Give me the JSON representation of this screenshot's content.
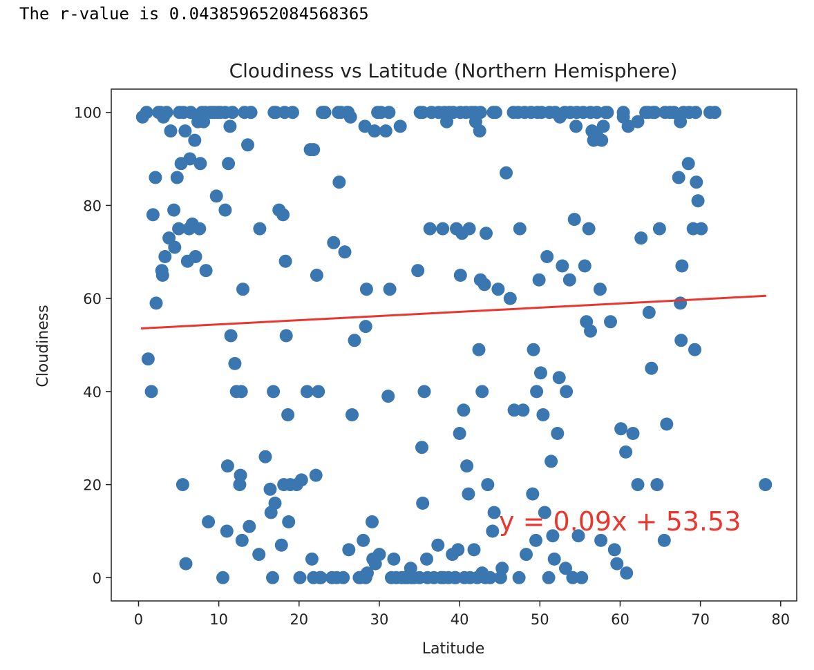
{
  "output_text": "The r-value is 0.043859652084568365",
  "chart_data": {
    "type": "scatter",
    "title": "Cloudiness vs Latitude (Northern Hemisphere)",
    "xlabel": "Latitude",
    "ylabel": "Cloudiness",
    "xlim": [
      -3.4,
      82
    ],
    "ylim": [
      -5,
      105
    ],
    "xticks": [
      0,
      10,
      20,
      30,
      40,
      50,
      60,
      70,
      80
    ],
    "yticks": [
      0,
      20,
      40,
      60,
      80,
      100
    ],
    "grid": false,
    "point_color": "#3a76af",
    "line_color": "#e8372f",
    "regression": {
      "slope": 0.09,
      "intercept": 53.53,
      "x_range": [
        0.3,
        78.2
      ],
      "equation": "y = 0.09x + 53.53"
    },
    "points": [
      [
        0.5,
        99
      ],
      [
        1,
        100
      ],
      [
        1.2,
        47
      ],
      [
        1.6,
        40
      ],
      [
        1.8,
        78
      ],
      [
        2.1,
        86
      ],
      [
        2.2,
        59
      ],
      [
        2.7,
        100
      ],
      [
        2.9,
        66
      ],
      [
        3,
        65
      ],
      [
        3.1,
        99
      ],
      [
        3.3,
        69
      ],
      [
        3.5,
        100
      ],
      [
        3.8,
        73
      ],
      [
        4,
        96
      ],
      [
        4.4,
        79
      ],
      [
        4.5,
        71
      ],
      [
        4.8,
        86
      ],
      [
        5,
        75
      ],
      [
        5.3,
        89
      ],
      [
        5.5,
        20
      ],
      [
        5.6,
        100
      ],
      [
        5.8,
        96
      ],
      [
        5.9,
        3
      ],
      [
        6.1,
        68
      ],
      [
        6.3,
        75
      ],
      [
        6.4,
        90
      ],
      [
        6.5,
        100
      ],
      [
        6.7,
        76
      ],
      [
        7,
        94
      ],
      [
        7.1,
        69
      ],
      [
        7.4,
        98
      ],
      [
        7.6,
        75
      ],
      [
        7.7,
        89
      ],
      [
        7.9,
        100
      ],
      [
        8.1,
        98
      ],
      [
        8.4,
        66
      ],
      [
        8.7,
        12
      ],
      [
        8.9,
        100
      ],
      [
        9.2,
        100
      ],
      [
        9.5,
        100
      ],
      [
        9.7,
        82
      ],
      [
        10.2,
        100
      ],
      [
        10.5,
        0
      ],
      [
        10.8,
        79
      ],
      [
        11,
        10
      ],
      [
        11.1,
        24
      ],
      [
        11.2,
        89
      ],
      [
        11.4,
        97
      ],
      [
        11.5,
        52
      ],
      [
        11.7,
        100
      ],
      [
        12,
        46
      ],
      [
        12.2,
        40
      ],
      [
        12.6,
        20
      ],
      [
        12.7,
        22
      ],
      [
        12.8,
        40
      ],
      [
        12.9,
        8
      ],
      [
        13,
        62
      ],
      [
        13.2,
        100
      ],
      [
        13.6,
        93
      ],
      [
        13.8,
        11
      ],
      [
        14,
        100
      ],
      [
        15,
        5
      ],
      [
        15.1,
        75
      ],
      [
        15.8,
        26
      ],
      [
        16.4,
        19
      ],
      [
        16.5,
        14
      ],
      [
        16.7,
        0
      ],
      [
        16.8,
        40
      ],
      [
        17,
        16
      ],
      [
        17.1,
        100
      ],
      [
        17.5,
        79
      ],
      [
        17.8,
        7
      ],
      [
        18,
        78
      ],
      [
        18.1,
        20
      ],
      [
        18.3,
        68
      ],
      [
        18.4,
        52
      ],
      [
        18.6,
        35
      ],
      [
        18.7,
        12
      ],
      [
        18.9,
        20
      ],
      [
        19.2,
        100
      ],
      [
        19.7,
        20
      ],
      [
        20.1,
        0
      ],
      [
        20.3,
        21
      ],
      [
        21,
        40
      ],
      [
        21.4,
        92
      ],
      [
        21.6,
        4
      ],
      [
        21.8,
        0
      ],
      [
        22.1,
        22
      ],
      [
        22.2,
        65
      ],
      [
        22.4,
        40
      ],
      [
        22.7,
        0
      ],
      [
        22.9,
        100
      ],
      [
        23.2,
        100
      ],
      [
        24.3,
        72
      ],
      [
        24.7,
        0
      ],
      [
        25,
        85
      ],
      [
        25.2,
        100
      ],
      [
        25.5,
        0
      ],
      [
        25.7,
        70
      ],
      [
        26,
        100
      ],
      [
        26.2,
        6
      ],
      [
        26.4,
        99
      ],
      [
        26.6,
        35
      ],
      [
        26.9,
        51
      ],
      [
        27.5,
        0
      ],
      [
        28,
        8
      ],
      [
        28.2,
        97
      ],
      [
        28.3,
        54
      ],
      [
        28.4,
        62
      ],
      [
        28.5,
        1
      ],
      [
        29.1,
        12
      ],
      [
        29.2,
        4
      ],
      [
        29.4,
        96
      ],
      [
        29.5,
        3
      ],
      [
        30,
        5
      ],
      [
        30.2,
        100
      ],
      [
        30.8,
        96
      ],
      [
        31.1,
        39
      ],
      [
        31.3,
        62
      ],
      [
        31.5,
        0
      ],
      [
        31.8,
        4
      ],
      [
        32.1,
        0
      ],
      [
        32.6,
        97
      ],
      [
        32.8,
        0
      ],
      [
        33.5,
        0
      ],
      [
        33.9,
        2
      ],
      [
        34.3,
        0
      ],
      [
        34.8,
        66
      ],
      [
        35.1,
        100
      ],
      [
        35.3,
        28
      ],
      [
        35.4,
        16
      ],
      [
        35.6,
        40
      ],
      [
        35.9,
        4
      ],
      [
        36.3,
        75
      ],
      [
        36.8,
        0
      ],
      [
        37.3,
        7
      ],
      [
        37.7,
        0
      ],
      [
        37.9,
        75
      ],
      [
        38.4,
        98
      ],
      [
        38.6,
        0
      ],
      [
        39.1,
        5
      ],
      [
        39.4,
        0
      ],
      [
        39.6,
        75
      ],
      [
        39.8,
        6
      ],
      [
        40,
        31
      ],
      [
        40.1,
        65
      ],
      [
        40.3,
        74
      ],
      [
        40.5,
        36
      ],
      [
        40.9,
        24
      ],
      [
        41.1,
        18
      ],
      [
        41.2,
        75
      ],
      [
        41.5,
        100
      ],
      [
        41.8,
        6
      ],
      [
        42,
        98
      ],
      [
        42.2,
        0
      ],
      [
        42.4,
        49
      ],
      [
        42.5,
        96
      ],
      [
        42.6,
        64
      ],
      [
        42.8,
        40
      ],
      [
        43.1,
        63
      ],
      [
        43.3,
        74
      ],
      [
        43.5,
        20
      ],
      [
        43.8,
        0
      ],
      [
        44.1,
        10
      ],
      [
        44.3,
        14
      ],
      [
        44.5,
        100
      ],
      [
        44.8,
        62
      ],
      [
        45.3,
        2
      ],
      [
        45.8,
        87
      ],
      [
        46.3,
        60
      ],
      [
        46.8,
        36
      ],
      [
        47.4,
        0
      ],
      [
        47.5,
        75
      ],
      [
        47.9,
        36
      ],
      [
        48.3,
        5
      ],
      [
        49.1,
        18
      ],
      [
        49.2,
        49
      ],
      [
        49.5,
        8
      ],
      [
        49.6,
        40
      ],
      [
        49.9,
        64
      ],
      [
        50.1,
        44
      ],
      [
        50.4,
        35
      ],
      [
        50.6,
        14
      ],
      [
        50.9,
        69
      ],
      [
        51.1,
        0
      ],
      [
        51.4,
        25
      ],
      [
        51.6,
        9
      ],
      [
        51.8,
        4
      ],
      [
        52.2,
        31
      ],
      [
        52.4,
        43
      ],
      [
        52.8,
        67
      ],
      [
        53.2,
        2
      ],
      [
        53.3,
        40
      ],
      [
        53.7,
        64
      ],
      [
        54.1,
        0
      ],
      [
        54.3,
        77
      ],
      [
        54.5,
        97
      ],
      [
        54.8,
        9
      ],
      [
        55.2,
        0
      ],
      [
        55.6,
        67
      ],
      [
        55.8,
        55
      ],
      [
        56.1,
        75
      ],
      [
        56.3,
        53
      ],
      [
        56.7,
        94
      ],
      [
        57.1,
        95
      ],
      [
        57.5,
        62
      ],
      [
        57.6,
        8
      ],
      [
        57.9,
        97
      ],
      [
        58.4,
        100
      ],
      [
        58.8,
        55
      ],
      [
        59.3,
        6
      ],
      [
        59.6,
        3
      ],
      [
        60.1,
        32
      ],
      [
        60.4,
        99
      ],
      [
        60.7,
        27
      ],
      [
        60.8,
        1
      ],
      [
        61,
        97
      ],
      [
        61.6,
        31
      ],
      [
        62.2,
        20
      ],
      [
        62.6,
        73
      ],
      [
        63.2,
        100
      ],
      [
        63.6,
        57
      ],
      [
        63.9,
        45
      ],
      [
        64.3,
        100
      ],
      [
        64.6,
        20
      ],
      [
        64.9,
        75
      ],
      [
        65.5,
        8
      ],
      [
        65.8,
        33
      ],
      [
        66.7,
        100
      ],
      [
        67.3,
        86
      ],
      [
        67.5,
        59
      ],
      [
        67.6,
        51
      ],
      [
        67.7,
        67
      ],
      [
        68.5,
        89
      ],
      [
        69.1,
        75
      ],
      [
        69.3,
        49
      ],
      [
        69.5,
        85
      ],
      [
        69.7,
        81
      ],
      [
        70.1,
        75
      ],
      [
        71.2,
        100
      ],
      [
        71.8,
        100
      ],
      [
        78.1,
        20
      ],
      [
        2.5,
        100
      ],
      [
        5.1,
        100
      ],
      [
        8.3,
        100
      ],
      [
        9.9,
        100
      ],
      [
        10.8,
        100
      ],
      [
        16.9,
        100
      ],
      [
        18.2,
        100
      ],
      [
        23.1,
        100
      ],
      [
        24.9,
        100
      ],
      [
        26.1,
        100
      ],
      [
        29.8,
        100
      ],
      [
        31.2,
        100
      ],
      [
        35.4,
        100
      ],
      [
        36.5,
        100
      ],
      [
        37.4,
        100
      ],
      [
        38.1,
        100
      ],
      [
        38.7,
        100
      ],
      [
        39.2,
        100
      ],
      [
        40.1,
        100
      ],
      [
        40.8,
        100
      ],
      [
        41.9,
        100
      ],
      [
        42.6,
        100
      ],
      [
        44.2,
        100
      ],
      [
        46.7,
        100
      ],
      [
        47.3,
        100
      ],
      [
        48.1,
        100
      ],
      [
        48.9,
        100
      ],
      [
        49.7,
        100
      ],
      [
        50.2,
        100
      ],
      [
        51.2,
        100
      ],
      [
        51.9,
        100
      ],
      [
        52.5,
        99
      ],
      [
        53.1,
        100
      ],
      [
        53.8,
        100
      ],
      [
        54.6,
        100
      ],
      [
        55.4,
        100
      ],
      [
        56.3,
        100
      ],
      [
        57.1,
        100
      ],
      [
        58.2,
        100
      ],
      [
        60.4,
        100
      ],
      [
        62.2,
        98
      ],
      [
        63.5,
        100
      ],
      [
        64.1,
        100
      ],
      [
        65.6,
        100
      ],
      [
        66.2,
        100
      ],
      [
        67.9,
        100
      ],
      [
        68.6,
        100
      ],
      [
        69.4,
        100
      ],
      [
        67.5,
        98
      ],
      [
        56.5,
        96
      ],
      [
        57.7,
        94
      ],
      [
        21.8,
        92
      ],
      [
        33.2,
        0
      ],
      [
        34,
        0
      ],
      [
        35,
        0
      ],
      [
        36,
        0
      ],
      [
        38,
        0
      ],
      [
        39.5,
        0
      ],
      [
        40.6,
        0
      ],
      [
        41.3,
        0
      ],
      [
        42.8,
        1
      ],
      [
        43.2,
        0
      ],
      [
        45.1,
        0
      ],
      [
        27.6,
        0
      ],
      [
        28.3,
        0
      ],
      [
        24.1,
        0
      ],
      [
        22.6,
        0
      ]
    ]
  }
}
